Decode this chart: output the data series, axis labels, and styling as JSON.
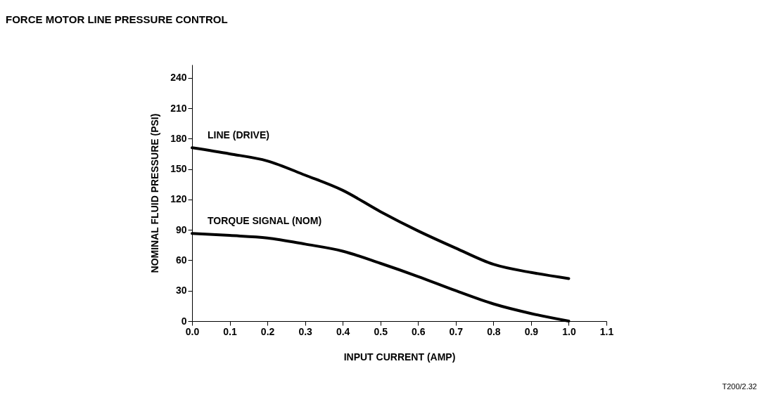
{
  "chart_data": {
    "type": "line",
    "title": "FORCE MOTOR LINE PRESSURE CONTROL",
    "xlabel": "INPUT CURRENT (AMP)",
    "ylabel": "NOMINAL FLUID PRESSURE (PSI)",
    "x": [
      0.0,
      0.1,
      0.2,
      0.3,
      0.4,
      0.5,
      0.6,
      0.7,
      0.8,
      0.9,
      1.0
    ],
    "series": [
      {
        "name": "LINE (DRIVE)",
        "color": "#000000",
        "values": [
          171,
          165,
          158,
          144,
          129,
          108,
          89,
          72,
          56,
          48,
          42
        ]
      },
      {
        "name": "TORQUE SIGNAL (NOM)",
        "color": "#000000",
        "values": [
          86.5,
          84.5,
          82,
          76,
          69,
          57,
          44,
          30,
          17,
          7.5,
          0
        ]
      }
    ],
    "xlim": [
      0,
      1.1
    ],
    "xticks": [
      {
        "value": 0,
        "label": "0.0"
      },
      0.1,
      0.2,
      0.3,
      0.4,
      0.5,
      0.6,
      0.7,
      0.8,
      0.9,
      {
        "value": 1,
        "label": "1.0"
      },
      1.1
    ],
    "ylim": [
      0,
      253
    ],
    "yticks": [
      0,
      30,
      60,
      90,
      120,
      150,
      180,
      210,
      240
    ],
    "grid": false,
    "legend": false,
    "marker": "none",
    "line_style": "solid",
    "annotations": [
      "T200/2.32"
    ]
  }
}
